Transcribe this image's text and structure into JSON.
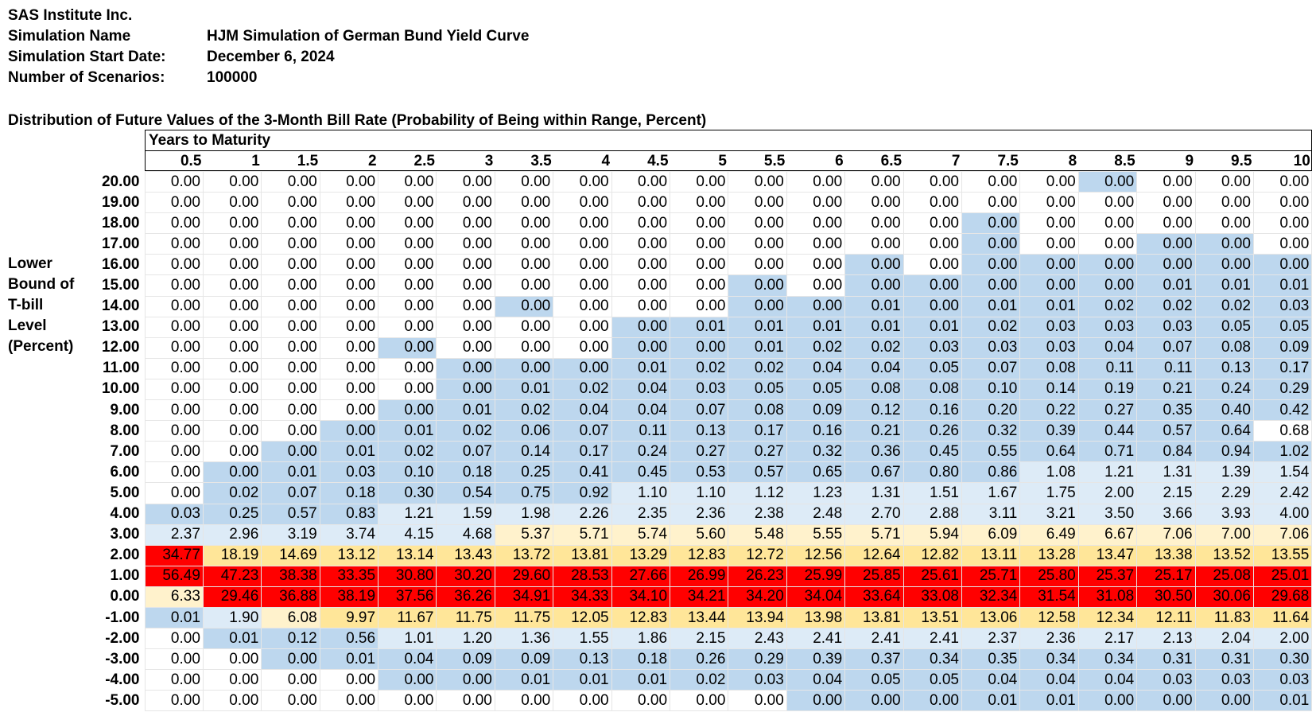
{
  "company": "SAS Institute Inc.",
  "meta": [
    {
      "label": "Simulation Name",
      "value": "HJM Simulation of German Bund Yield Curve"
    },
    {
      "label": "Simulation Start Date:",
      "value": "December 6, 2024"
    },
    {
      "label": "Number of Scenarios:",
      "value": "100000"
    }
  ],
  "subtitle": "Distribution of Future Values of the 3-Month Bill Rate (Probability of Being within Range, Percent)",
  "side_label": [
    "Lower",
    "Bound of",
    "T-bill",
    "Level",
    "(Percent)"
  ],
  "header_title": "Years to Maturity",
  "colors": {
    "white": "#ffffff",
    "light_blue": "#ddebf7",
    "blue": "#bdd7ee",
    "cream": "#fff2cc",
    "yellow": "#ffe699",
    "red": "#ff0000"
  },
  "years": [
    "0.5",
    "1",
    "1.5",
    "2",
    "2.5",
    "3",
    "3.5",
    "4",
    "4.5",
    "5",
    "5.5",
    "6",
    "6.5",
    "7",
    "7.5",
    "8",
    "8.5",
    "9",
    "9.5",
    "10"
  ],
  "row_labels": [
    "20.00",
    "19.00",
    "18.00",
    "17.00",
    "16.00",
    "15.00",
    "14.00",
    "13.00",
    "12.00",
    "11.00",
    "10.00",
    "9.00",
    "8.00",
    "7.00",
    "6.00",
    "5.00",
    "4.00",
    "3.00",
    "2.00",
    "1.00",
    "0.00",
    "-1.00",
    "-2.00",
    "-3.00",
    "-4.00",
    "-5.00"
  ],
  "rows": [
    [
      "0.00",
      "0.00",
      "0.00",
      "0.00",
      "0.00",
      "0.00",
      "0.00",
      "0.00",
      "0.00",
      "0.00",
      "0.00",
      "0.00",
      "0.00",
      "0.00",
      "0.00",
      "0.00",
      "0.00",
      "0.00",
      "0.00",
      "0.00"
    ],
    [
      "0.00",
      "0.00",
      "0.00",
      "0.00",
      "0.00",
      "0.00",
      "0.00",
      "0.00",
      "0.00",
      "0.00",
      "0.00",
      "0.00",
      "0.00",
      "0.00",
      "0.00",
      "0.00",
      "0.00",
      "0.00",
      "0.00",
      "0.00"
    ],
    [
      "0.00",
      "0.00",
      "0.00",
      "0.00",
      "0.00",
      "0.00",
      "0.00",
      "0.00",
      "0.00",
      "0.00",
      "0.00",
      "0.00",
      "0.00",
      "0.00",
      "0.00",
      "0.00",
      "0.00",
      "0.00",
      "0.00",
      "0.00"
    ],
    [
      "0.00",
      "0.00",
      "0.00",
      "0.00",
      "0.00",
      "0.00",
      "0.00",
      "0.00",
      "0.00",
      "0.00",
      "0.00",
      "0.00",
      "0.00",
      "0.00",
      "0.00",
      "0.00",
      "0.00",
      "0.00",
      "0.00",
      "0.00"
    ],
    [
      "0.00",
      "0.00",
      "0.00",
      "0.00",
      "0.00",
      "0.00",
      "0.00",
      "0.00",
      "0.00",
      "0.00",
      "0.00",
      "0.00",
      "0.00",
      "0.00",
      "0.00",
      "0.00",
      "0.00",
      "0.00",
      "0.00",
      "0.00"
    ],
    [
      "0.00",
      "0.00",
      "0.00",
      "0.00",
      "0.00",
      "0.00",
      "0.00",
      "0.00",
      "0.00",
      "0.00",
      "0.00",
      "0.00",
      "0.00",
      "0.00",
      "0.00",
      "0.00",
      "0.00",
      "0.01",
      "0.01",
      "0.01"
    ],
    [
      "0.00",
      "0.00",
      "0.00",
      "0.00",
      "0.00",
      "0.00",
      "0.00",
      "0.00",
      "0.00",
      "0.00",
      "0.00",
      "0.00",
      "0.01",
      "0.00",
      "0.01",
      "0.01",
      "0.02",
      "0.02",
      "0.02",
      "0.03"
    ],
    [
      "0.00",
      "0.00",
      "0.00",
      "0.00",
      "0.00",
      "0.00",
      "0.00",
      "0.00",
      "0.00",
      "0.01",
      "0.01",
      "0.01",
      "0.01",
      "0.01",
      "0.02",
      "0.03",
      "0.03",
      "0.03",
      "0.05",
      "0.05"
    ],
    [
      "0.00",
      "0.00",
      "0.00",
      "0.00",
      "0.00",
      "0.00",
      "0.00",
      "0.00",
      "0.00",
      "0.00",
      "0.01",
      "0.02",
      "0.02",
      "0.03",
      "0.03",
      "0.03",
      "0.04",
      "0.07",
      "0.08",
      "0.09"
    ],
    [
      "0.00",
      "0.00",
      "0.00",
      "0.00",
      "0.00",
      "0.00",
      "0.00",
      "0.00",
      "0.01",
      "0.02",
      "0.02",
      "0.04",
      "0.04",
      "0.05",
      "0.07",
      "0.08",
      "0.11",
      "0.11",
      "0.13",
      "0.17"
    ],
    [
      "0.00",
      "0.00",
      "0.00",
      "0.00",
      "0.00",
      "0.00",
      "0.01",
      "0.02",
      "0.04",
      "0.03",
      "0.05",
      "0.05",
      "0.08",
      "0.08",
      "0.10",
      "0.14",
      "0.19",
      "0.21",
      "0.24",
      "0.29"
    ],
    [
      "0.00",
      "0.00",
      "0.00",
      "0.00",
      "0.00",
      "0.01",
      "0.02",
      "0.04",
      "0.04",
      "0.07",
      "0.08",
      "0.09",
      "0.12",
      "0.16",
      "0.20",
      "0.22",
      "0.27",
      "0.35",
      "0.40",
      "0.42"
    ],
    [
      "0.00",
      "0.00",
      "0.00",
      "0.00",
      "0.01",
      "0.02",
      "0.06",
      "0.07",
      "0.11",
      "0.13",
      "0.17",
      "0.16",
      "0.21",
      "0.26",
      "0.32",
      "0.39",
      "0.44",
      "0.57",
      "0.64",
      "0.68"
    ],
    [
      "0.00",
      "0.00",
      "0.00",
      "0.01",
      "0.02",
      "0.07",
      "0.14",
      "0.17",
      "0.24",
      "0.27",
      "0.27",
      "0.32",
      "0.36",
      "0.45",
      "0.55",
      "0.64",
      "0.71",
      "0.84",
      "0.94",
      "1.02"
    ],
    [
      "0.00",
      "0.00",
      "0.01",
      "0.03",
      "0.10",
      "0.18",
      "0.25",
      "0.41",
      "0.45",
      "0.53",
      "0.57",
      "0.65",
      "0.67",
      "0.80",
      "0.86",
      "1.08",
      "1.21",
      "1.31",
      "1.39",
      "1.54"
    ],
    [
      "0.00",
      "0.02",
      "0.07",
      "0.18",
      "0.30",
      "0.54",
      "0.75",
      "0.92",
      "1.10",
      "1.10",
      "1.12",
      "1.23",
      "1.31",
      "1.51",
      "1.67",
      "1.75",
      "2.00",
      "2.15",
      "2.29",
      "2.42"
    ],
    [
      "0.03",
      "0.25",
      "0.57",
      "0.83",
      "1.21",
      "1.59",
      "1.98",
      "2.26",
      "2.35",
      "2.36",
      "2.38",
      "2.48",
      "2.70",
      "2.88",
      "3.11",
      "3.21",
      "3.50",
      "3.66",
      "3.93",
      "4.00"
    ],
    [
      "2.37",
      "2.96",
      "3.19",
      "3.74",
      "4.15",
      "4.68",
      "5.37",
      "5.71",
      "5.74",
      "5.60",
      "5.48",
      "5.55",
      "5.71",
      "5.94",
      "6.09",
      "6.49",
      "6.67",
      "7.06",
      "7.00",
      "7.06"
    ],
    [
      "34.77",
      "18.19",
      "14.69",
      "13.12",
      "13.14",
      "13.43",
      "13.72",
      "13.81",
      "13.29",
      "12.83",
      "12.72",
      "12.56",
      "12.64",
      "12.82",
      "13.11",
      "13.28",
      "13.47",
      "13.38",
      "13.52",
      "13.55"
    ],
    [
      "56.49",
      "47.23",
      "38.38",
      "33.35",
      "30.80",
      "30.20",
      "29.60",
      "28.53",
      "27.66",
      "26.99",
      "26.23",
      "25.99",
      "25.85",
      "25.61",
      "25.71",
      "25.80",
      "25.37",
      "25.17",
      "25.08",
      "25.01"
    ],
    [
      "6.33",
      "29.46",
      "36.88",
      "38.19",
      "37.56",
      "36.26",
      "34.91",
      "34.33",
      "34.10",
      "34.21",
      "34.20",
      "34.04",
      "33.64",
      "33.08",
      "32.34",
      "31.54",
      "31.08",
      "30.50",
      "30.06",
      "29.68"
    ],
    [
      "0.01",
      "1.90",
      "6.08",
      "9.97",
      "11.67",
      "11.75",
      "11.75",
      "12.05",
      "12.83",
      "13.44",
      "13.94",
      "13.98",
      "13.81",
      "13.51",
      "13.06",
      "12.58",
      "12.34",
      "12.11",
      "11.83",
      "11.64"
    ],
    [
      "0.00",
      "0.01",
      "0.12",
      "0.56",
      "1.01",
      "1.20",
      "1.36",
      "1.55",
      "1.86",
      "2.15",
      "2.43",
      "2.41",
      "2.41",
      "2.41",
      "2.37",
      "2.36",
      "2.17",
      "2.13",
      "2.04",
      "2.00"
    ],
    [
      "0.00",
      "0.00",
      "0.00",
      "0.01",
      "0.04",
      "0.09",
      "0.09",
      "0.13",
      "0.18",
      "0.26",
      "0.29",
      "0.39",
      "0.37",
      "0.34",
      "0.35",
      "0.34",
      "0.34",
      "0.31",
      "0.31",
      "0.30"
    ],
    [
      "0.00",
      "0.00",
      "0.00",
      "0.00",
      "0.00",
      "0.00",
      "0.01",
      "0.01",
      "0.01",
      "0.02",
      "0.03",
      "0.04",
      "0.05",
      "0.05",
      "0.04",
      "0.04",
      "0.04",
      "0.03",
      "0.03",
      "0.03"
    ],
    [
      "0.00",
      "0.00",
      "0.00",
      "0.00",
      "0.00",
      "0.00",
      "0.00",
      "0.00",
      "0.00",
      "0.00",
      "0.00",
      "0.00",
      "0.00",
      "0.00",
      "0.01",
      "0.01",
      "0.00",
      "0.00",
      "0.00",
      "0.01"
    ]
  ],
  "fills": [
    "WWWWWWWWWWWWWWWWBWWW",
    "WWWWWWWWWWWWWWWWWWWW",
    "WWWWWWWWWWWWWWBWWWWW",
    "WWWWWWWWWWWWWWBWWBBW",
    "WWWWWWWWWWWWBWBBBBBB",
    "WWWWWWWWWWBWBBBBBBBB",
    "WWWWWWBWWWBBBBBBBBBB",
    "WWWWWWWWBBBBBBBBBBBB",
    "WWWWBWWWBBBBBBBBBBBB",
    "WWWWWBBBBBBBBBBBBBBB",
    "WWWWWBBBBBBBBBBBBBBB",
    "WWWWBBBBBBBBBBBBBBBB",
    "WWWBBBBBBBBBBBBBBBBW",
    "WWBBBBBBBBBBBBBBBBBB",
    "WBBBBBBBBBBBBBBLLLLL",
    "WBBBBBBBLLLLLLLLLLLL",
    "BBBBLLLLLLLLLLLLLLLL",
    "LLLLLLCCCCCCCCCCCCCC",
    "RYYYYYYYYYYYYYYYYYYY",
    "RRRRRRRRRRRRRRRRRRRR",
    "CRRRRRRRRRRRRRRRRRRR",
    "BLCYYYYYYYYYYYYYYYYY",
    "WBBBLLLLLLLLLLLLLLLL",
    "WWBBBBBBBBBBBBBBBBBB",
    "WWWWBBBBBBBBBBBBBBBB",
    "WWWWWWWWWWWBBBBBBBBB"
  ]
}
